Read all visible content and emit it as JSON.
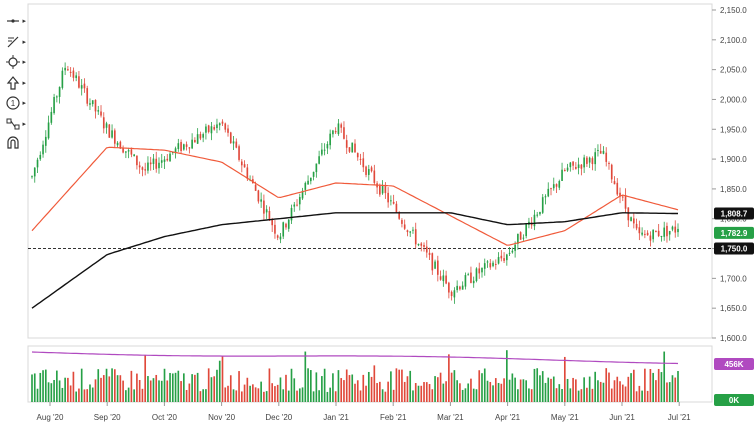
{
  "toolbar": {
    "items": [
      {
        "name": "crosshair-tool-icon"
      },
      {
        "name": "trend-line-tool-icon"
      },
      {
        "name": "move-tool-icon"
      },
      {
        "name": "arrows-tool-icon"
      },
      {
        "name": "dollar-tool-icon"
      },
      {
        "name": "pattern-tool-icon"
      },
      {
        "name": "magnet-tool-icon"
      }
    ]
  },
  "price_axis": {
    "ticks": [
      "2,150.0",
      "2,100.0",
      "2,050.0",
      "2,000.0",
      "1,950.0",
      "1,900.0",
      "1,850.0",
      "1,800.0",
      "1,750.0",
      "1,700.0",
      "1,650.0",
      "1,600.0"
    ],
    "tick_values": [
      2150,
      2100,
      2050,
      2000,
      1950,
      1900,
      1850,
      1800,
      1750,
      1700,
      1650,
      1600
    ]
  },
  "badges": {
    "ma200": {
      "label": "1,808.7",
      "value": 1808.7,
      "color": "#111111"
    },
    "last": {
      "label": "1,782.9",
      "value": 1782.9,
      "color": "#26a046"
    },
    "dashed": {
      "label": "1,750.0",
      "value": 1750.0,
      "color": "#111111"
    },
    "volume_avg": {
      "label": "456K",
      "color": "#b04ac0"
    },
    "volume_zero": {
      "label": "0K",
      "color": "#26a046"
    }
  },
  "time_axis": {
    "labels": [
      "Aug '20",
      "Sep '20",
      "Oct '20",
      "Nov '20",
      "Dec '20",
      "Jan '21",
      "Feb '21",
      "Mar '21",
      "Apr '21",
      "May '21",
      "Jun '21",
      "Jul '21"
    ]
  },
  "colors": {
    "up": "#26a046",
    "down": "#e0483a",
    "ma_fast": "#f05a3a",
    "ma_slow": "#111111",
    "volume_ma": "#b04ac0"
  },
  "chart_data": {
    "type": "candlestick",
    "price_range": [
      1600,
      2150
    ],
    "horizontal_line": 1750,
    "price_path": [
      [
        "Aug '20",
        1870
      ],
      [
        "Aug '20",
        2060
      ],
      [
        "Sep '20",
        1950
      ],
      [
        "Oct '20",
        1880
      ],
      [
        "Oct '20",
        1920
      ],
      [
        "Nov '20",
        1960
      ],
      [
        "Dec '20",
        1770
      ],
      [
        "Jan '21",
        1955
      ],
      [
        "Feb '21",
        1820
      ],
      [
        "Mar '21",
        1680
      ],
      [
        "Apr '21",
        1740
      ],
      [
        "May '21",
        1880
      ],
      [
        "Jun '21",
        1910
      ],
      [
        "Jun '21",
        1770
      ],
      [
        "Jul '21",
        1782.9
      ]
    ],
    "ma_fast_path": [
      [
        "Aug '20",
        1780
      ],
      [
        "Sep '20",
        1920
      ],
      [
        "Oct '20",
        1915
      ],
      [
        "Nov '20",
        1895
      ],
      [
        "Dec '20",
        1835
      ],
      [
        "Jan '21",
        1860
      ],
      [
        "Feb '21",
        1855
      ],
      [
        "Mar '21",
        1805
      ],
      [
        "Apr '21",
        1755
      ],
      [
        "May '21",
        1780
      ],
      [
        "Jun '21",
        1840
      ],
      [
        "Jul '21",
        1815
      ]
    ],
    "ma_slow_path": [
      [
        "Aug '20",
        1650
      ],
      [
        "Sep '20",
        1740
      ],
      [
        "Oct '20",
        1770
      ],
      [
        "Nov '20",
        1790
      ],
      [
        "Jan '21",
        1810
      ],
      [
        "Mar '21",
        1810
      ],
      [
        "Apr '21",
        1790
      ],
      [
        "May '21",
        1795
      ],
      [
        "Jun '21",
        1810
      ],
      [
        "Jul '21",
        1808.7
      ]
    ]
  }
}
